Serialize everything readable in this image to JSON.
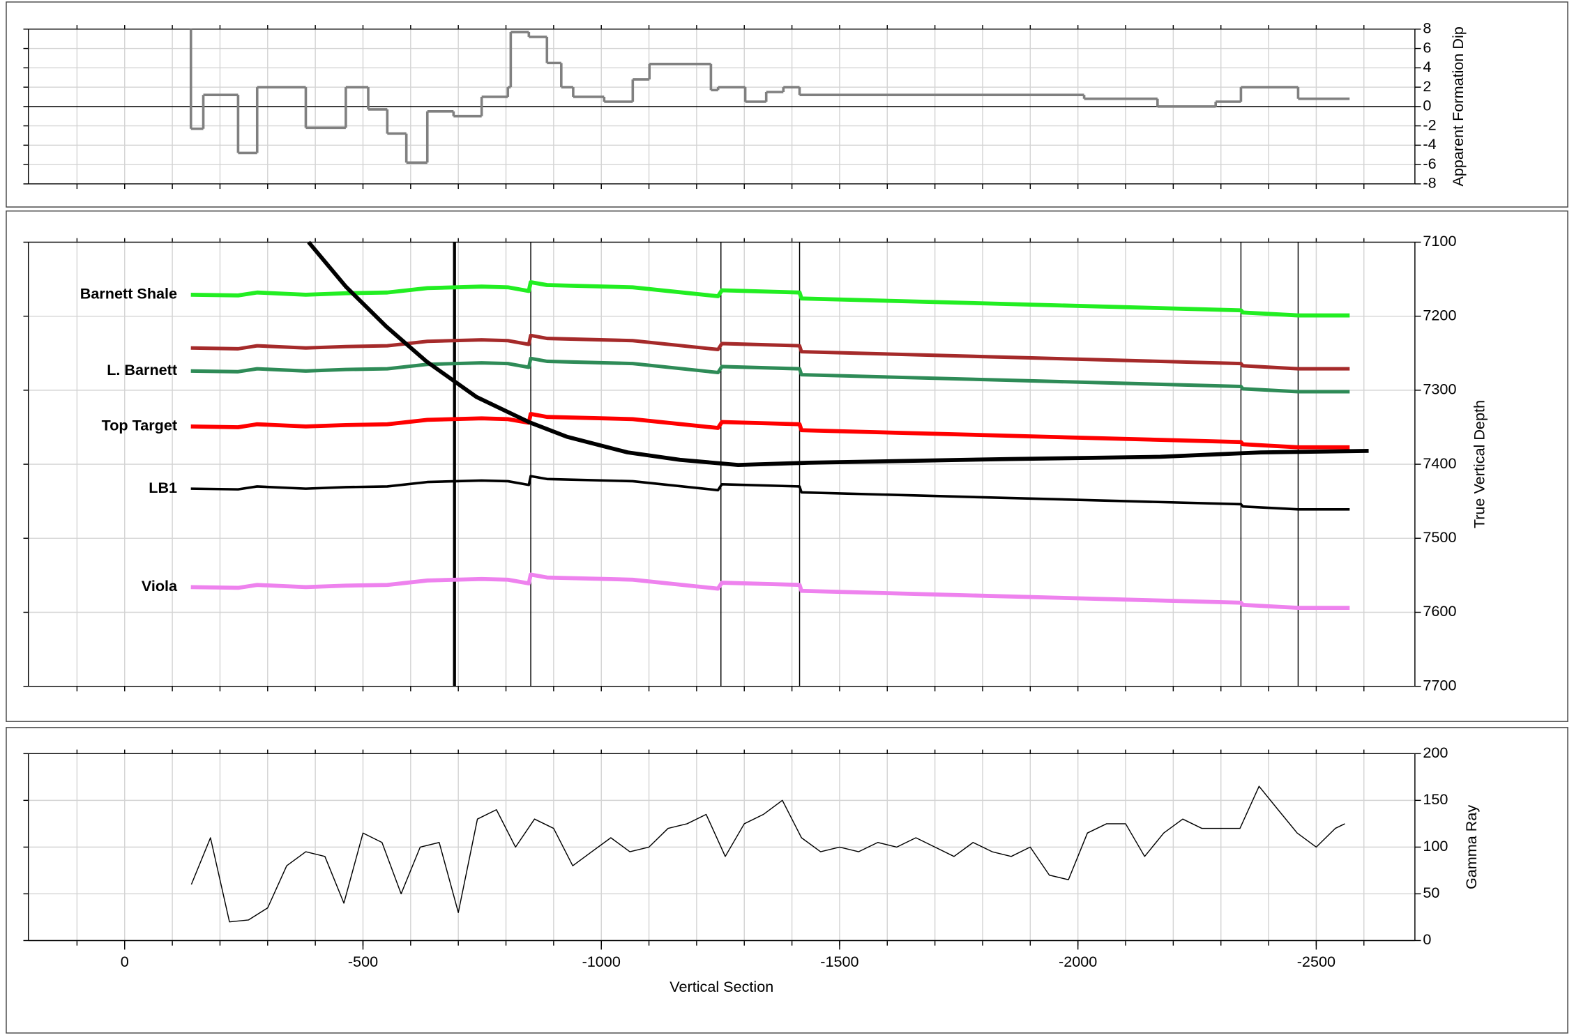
{
  "chart_data": [
    {
      "type": "step",
      "ylabel": "Apparent Formation Dip",
      "xlim": [
        202,
        -2707
      ],
      "ylim": [
        -8,
        8
      ],
      "yticks": [
        -8,
        -6,
        -4,
        -2,
        0,
        2,
        4,
        6,
        8
      ],
      "grid": true,
      "series": [
        {
          "color": "#808080",
          "x": [
            -139,
            -139,
            -165,
            -238,
            -278,
            -380,
            -464,
            -511,
            -551,
            -591,
            -635,
            -690,
            -749,
            -804,
            -810,
            -848,
            -886,
            -916,
            -941,
            -1006,
            -1066,
            -1101,
            -1230,
            -1245,
            -1302,
            -1346,
            -1382,
            -1416,
            -2013,
            -2167,
            -2289,
            -2342,
            -2462,
            -2570
          ],
          "values": [
            8,
            -2.3,
            1.2,
            -4.8,
            2,
            -2.2,
            2,
            -0.3,
            -2.8,
            -5.8,
            -0.5,
            -1,
            1,
            2,
            7.7,
            7.2,
            4.5,
            2,
            1,
            0.5,
            2.8,
            4.4,
            1.7,
            2,
            0.5,
            1.5,
            2,
            1.2,
            0.8,
            0,
            0.5,
            2,
            0.8,
            0.8
          ]
        }
      ]
    },
    {
      "type": "line",
      "ylabel": "True Vertical Depth",
      "xlim": [
        202,
        -2707
      ],
      "ylim": [
        7700,
        7100
      ],
      "yticks": [
        7100,
        7200,
        7300,
        7400,
        7500,
        7600,
        7700
      ],
      "grid": true,
      "markers_x": [
        -692,
        -852,
        -1251,
        -1416,
        -2342,
        -2462
      ],
      "x": [
        -139,
        -238,
        -278,
        -380,
        -464,
        -551,
        -635,
        -749,
        -804,
        -848,
        -852,
        -886,
        -1066,
        -1245,
        -1253,
        -1416,
        -1420,
        -2342,
        -2346,
        -2462,
        -2570
      ],
      "series": [
        {
          "name": "Barnett Shale",
          "color": "#22ee22",
          "values": [
            7171,
            7172,
            7168,
            7171,
            7169,
            7168,
            7162,
            7160,
            7161,
            7166,
            7154,
            7158,
            7161,
            7173,
            7165,
            7168,
            7176,
            7192,
            7195,
            7199,
            7199
          ]
        },
        {
          "color": "#a52a2a",
          "values": [
            7243,
            7244,
            7240,
            7243,
            7241,
            7240,
            7234,
            7232,
            7233,
            7238,
            7226,
            7230,
            7233,
            7245,
            7237,
            7240,
            7248,
            7264,
            7267,
            7271,
            7271
          ]
        },
        {
          "name": "L. Barnett",
          "color": "#2e8b57",
          "values": [
            7274,
            7275,
            7271,
            7274,
            7272,
            7271,
            7265,
            7263,
            7264,
            7269,
            7257,
            7261,
            7264,
            7276,
            7268,
            7271,
            7279,
            7295,
            7298,
            7302,
            7302
          ]
        },
        {
          "name": "Top Target",
          "color": "#ff0000",
          "values": [
            7349,
            7350,
            7346,
            7349,
            7347,
            7346,
            7340,
            7338,
            7339,
            7344,
            7332,
            7336,
            7339,
            7351,
            7343,
            7346,
            7354,
            7370,
            7373,
            7377,
            7377
          ]
        },
        {
          "name": "LB1",
          "color": "#000000",
          "values": [
            7433,
            7434,
            7430,
            7433,
            7431,
            7430,
            7424,
            7422,
            7423,
            7428,
            7416,
            7420,
            7423,
            7435,
            7427,
            7430,
            7438,
            7454,
            7457,
            7461,
            7461
          ]
        },
        {
          "name": "Viola",
          "color": "#ee82ee",
          "values": [
            7566,
            7567,
            7563,
            7566,
            7564,
            7563,
            7557,
            7555,
            7556,
            7561,
            7549,
            7553,
            7556,
            7568,
            7560,
            7563,
            7571,
            7587,
            7590,
            7594,
            7594
          ]
        },
        {
          "color": "#000000",
          "x": [
            -386,
            -464,
            -549,
            -633,
            -738,
            -848,
            -928,
            -1055,
            -1165,
            -1287,
            -1435,
            -1857,
            -2173,
            -2384,
            -2610
          ],
          "values": [
            7100,
            7160,
            7214,
            7261,
            7309,
            7343,
            7363,
            7384,
            7394,
            7401,
            7398,
            7393,
            7390,
            7384,
            7382
          ]
        }
      ]
    },
    {
      "type": "line",
      "ylabel": "Gamma Ray",
      "xlabel": "Vertical Section",
      "xlim": [
        202,
        -2707
      ],
      "xticks": [
        0,
        -500,
        -1000,
        -1500,
        -2000,
        -2500
      ],
      "xgrid": [
        100,
        0,
        -100,
        -200,
        -300,
        -400,
        -500,
        -600,
        -700,
        -800,
        -900,
        -1000,
        -1100,
        -1200,
        -1300,
        -1400,
        -1500,
        -1600,
        -1700,
        -1800,
        -1900,
        -2000,
        -2100,
        -2200,
        -2300,
        -2400,
        -2500,
        -2600
      ],
      "ylim": [
        0,
        200
      ],
      "yticks": [
        0,
        50,
        100,
        150,
        200
      ],
      "grid": true,
      "series": [
        {
          "color": "#000000",
          "x": [
            -140,
            -180,
            -220,
            -260,
            -300,
            -340,
            -380,
            -420,
            -460,
            -500,
            -540,
            -580,
            -620,
            -660,
            -700,
            -740,
            -780,
            -820,
            -860,
            -900,
            -940,
            -980,
            -1020,
            -1060,
            -1100,
            -1140,
            -1180,
            -1220,
            -1260,
            -1300,
            -1340,
            -1380,
            -1420,
            -1460,
            -1500,
            -1540,
            -1580,
            -1620,
            -1660,
            -1700,
            -1740,
            -1780,
            -1820,
            -1860,
            -1900,
            -1940,
            -1980,
            -2020,
            -2060,
            -2100,
            -2140,
            -2180,
            -2220,
            -2260,
            -2300,
            -2340,
            -2380,
            -2420,
            -2460,
            -2500,
            -2540,
            -2560
          ],
          "values": [
            60,
            110,
            20,
            22,
            35,
            80,
            95,
            90,
            40,
            115,
            105,
            50,
            100,
            105,
            30,
            130,
            140,
            100,
            130,
            120,
            80,
            95,
            110,
            95,
            100,
            120,
            125,
            135,
            90,
            125,
            135,
            150,
            110,
            95,
            100,
            95,
            105,
            100,
            110,
            100,
            90,
            105,
            95,
            90,
            100,
            70,
            65,
            115,
            125,
            125,
            90,
            115,
            130,
            120,
            120,
            120,
            165,
            140,
            115,
            100,
            120,
            125
          ]
        }
      ]
    }
  ]
}
